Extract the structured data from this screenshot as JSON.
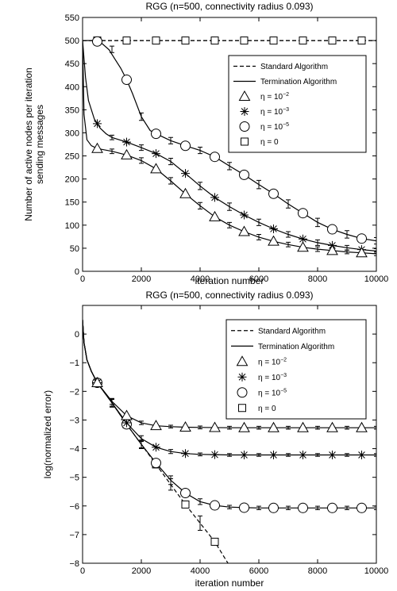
{
  "chart_data": [
    {
      "type": "line",
      "title": "RGG (n=500, connectivity radius 0.093)",
      "xlabel": "iteration number",
      "ylabel_lines": [
        "Number of active nodes per iteration",
        "sending messages"
      ],
      "xlim": [
        0,
        10000
      ],
      "ylim": [
        0,
        550
      ],
      "xticks": [
        0,
        2000,
        4000,
        6000,
        8000,
        10000
      ],
      "yticks": [
        0,
        50,
        100,
        150,
        200,
        250,
        300,
        350,
        400,
        450,
        500,
        550
      ],
      "grid": false,
      "legend_position": "top-right",
      "legend": [
        {
          "label": "Standard Algorithm",
          "style": "dashed",
          "marker": "none"
        },
        {
          "label": "Termination Algorithm",
          "style": "solid",
          "marker": "none"
        },
        {
          "label": "η = 10",
          "sup": "−2",
          "style": "none",
          "marker": "triangle"
        },
        {
          "label": "η = 10",
          "sup": "−3",
          "style": "none",
          "marker": "asterisk"
        },
        {
          "label": "η = 10",
          "sup": "−5",
          "style": "none",
          "marker": "circle"
        },
        {
          "label": "η = 0",
          "sup": "",
          "style": "none",
          "marker": "square"
        }
      ],
      "series": [
        {
          "legend_index": 0,
          "style": "dashed",
          "marker": "none",
          "x": [
            0,
            10000
          ],
          "y": [
            500,
            500
          ],
          "marker_x": [],
          "errorbars": []
        },
        {
          "legend_index": 5,
          "style": "dashed",
          "marker": "square",
          "x": [
            0,
            10000
          ],
          "y": [
            500,
            500
          ],
          "marker_x": [
            500,
            1500,
            2500,
            3500,
            4500,
            5500,
            6500,
            7500,
            8500,
            9500
          ],
          "errorbars": []
        },
        {
          "legend_index": 4,
          "style": "solid",
          "marker": "circle",
          "x": [
            0,
            300,
            600,
            900,
            1100,
            1300,
            1500,
            1700,
            2000,
            2300,
            2500,
            3000,
            3500,
            4000,
            4500,
            5000,
            5500,
            6000,
            6500,
            7000,
            7500,
            8000,
            8500,
            9000,
            9500,
            10000
          ],
          "y": [
            500,
            500,
            497,
            480,
            460,
            440,
            415,
            385,
            335,
            305,
            298,
            283,
            272,
            262,
            248,
            228,
            209,
            188,
            168,
            146,
            126,
            106,
            91,
            80,
            71,
            66
          ],
          "marker_x": [
            500,
            1500,
            2500,
            3500,
            4500,
            5500,
            6500,
            7500,
            8500,
            9500
          ],
          "errorbars": [
            [
              1000,
              481,
              7
            ],
            [
              2000,
              335,
              8
            ],
            [
              3000,
              283,
              7
            ],
            [
              4000,
              262,
              7
            ],
            [
              5000,
              228,
              8
            ],
            [
              6000,
              188,
              9
            ],
            [
              7000,
              146,
              9
            ],
            [
              8000,
              106,
              9
            ],
            [
              9000,
              80,
              8
            ],
            [
              10000,
              66,
              7
            ]
          ]
        },
        {
          "legend_index": 3,
          "style": "solid",
          "marker": "asterisk",
          "x": [
            0,
            100,
            200,
            400,
            600,
            800,
            1000,
            1500,
            2000,
            2500,
            3000,
            3500,
            4000,
            4500,
            5000,
            5500,
            6000,
            6500,
            7000,
            7500,
            8000,
            8500,
            9000,
            9500,
            10000
          ],
          "y": [
            500,
            420,
            370,
            330,
            310,
            298,
            290,
            280,
            268,
            255,
            238,
            212,
            185,
            160,
            140,
            122,
            106,
            92,
            80,
            70,
            62,
            56,
            51,
            47,
            44
          ],
          "marker_x": [
            500,
            1500,
            2500,
            3500,
            4500,
            5500,
            6500,
            7500,
            8500,
            9500
          ],
          "errorbars": [
            [
              1000,
              290,
              5
            ],
            [
              2000,
              268,
              6
            ],
            [
              3000,
              238,
              7
            ],
            [
              4000,
              185,
              8
            ],
            [
              5000,
              140,
              8
            ],
            [
              6000,
              106,
              7
            ],
            [
              7000,
              80,
              6
            ],
            [
              8000,
              62,
              6
            ],
            [
              9000,
              51,
              5
            ],
            [
              10000,
              44,
              5
            ]
          ]
        },
        {
          "legend_index": 2,
          "style": "solid",
          "marker": "triangle",
          "x": [
            0,
            50,
            150,
            300,
            500,
            1000,
            1500,
            2000,
            2500,
            3000,
            3500,
            4000,
            4500,
            5000,
            5500,
            6000,
            6500,
            7000,
            7500,
            8000,
            8500,
            9000,
            9500,
            10000
          ],
          "y": [
            500,
            340,
            285,
            272,
            266,
            260,
            252,
            240,
            222,
            196,
            168,
            142,
            118,
            100,
            86,
            74,
            65,
            58,
            52,
            48,
            45,
            42,
            40,
            38
          ],
          "marker_x": [
            500,
            1500,
            2500,
            3500,
            4500,
            5500,
            6500,
            7500,
            8500,
            9500
          ],
          "errorbars": [
            [
              1000,
              260,
              5
            ],
            [
              2000,
              240,
              6
            ],
            [
              3000,
              196,
              7
            ],
            [
              4000,
              142,
              7
            ],
            [
              5000,
              100,
              6
            ],
            [
              6000,
              74,
              6
            ],
            [
              7000,
              58,
              5
            ],
            [
              8000,
              48,
              5
            ],
            [
              9000,
              42,
              4
            ],
            [
              10000,
              38,
              4
            ]
          ]
        }
      ]
    },
    {
      "type": "line",
      "title": "RGG (n=500, connectivity radius 0.093)",
      "xlabel": "iteration number",
      "ylabel_lines": [
        "log(normalized error)"
      ],
      "xlim": [
        0,
        10000
      ],
      "ylim": [
        -8,
        1
      ],
      "xticks": [
        0,
        2000,
        4000,
        6000,
        8000,
        10000
      ],
      "yticks": [
        0,
        -1,
        -2,
        -3,
        -4,
        -5,
        -6,
        -7,
        -8
      ],
      "ytick_labels": [
        "0",
        "−1",
        "−2",
        "−3",
        "−4",
        "−5",
        "−6",
        "−7",
        "−8"
      ],
      "grid": false,
      "legend_position": "top-right",
      "legend": [
        {
          "label": "Standard Algorithm",
          "style": "dashed",
          "marker": "none"
        },
        {
          "label": "Termination Algorithm",
          "style": "solid",
          "marker": "none"
        },
        {
          "label": "η = 10",
          "sup": "−2",
          "style": "none",
          "marker": "triangle"
        },
        {
          "label": "η = 10",
          "sup": "−3",
          "style": "none",
          "marker": "asterisk"
        },
        {
          "label": "η = 10",
          "sup": "−5",
          "style": "none",
          "marker": "circle"
        },
        {
          "label": "η = 0",
          "sup": "",
          "style": "none",
          "marker": "square"
        }
      ],
      "series": [
        {
          "legend_index": 5,
          "style": "dashed",
          "marker": "square",
          "x": [
            0,
            50,
            150,
            300,
            500,
            1000,
            1500,
            2000,
            2500,
            3000,
            3500,
            4000,
            4500,
            4950
          ],
          "y": [
            0.5,
            -0.3,
            -0.9,
            -1.3,
            -1.7,
            -2.4,
            -3.15,
            -3.85,
            -4.55,
            -5.25,
            -5.95,
            -6.6,
            -7.25,
            -8.0
          ],
          "marker_x": [
            500,
            1500,
            2500,
            3500,
            4500
          ],
          "errorbars": [
            [
              1000,
              -2.4,
              0.15
            ],
            [
              2000,
              -3.85,
              0.15
            ],
            [
              3000,
              -5.25,
              0.2
            ],
            [
              4000,
              -6.6,
              0.25
            ]
          ]
        },
        {
          "legend_index": 4,
          "style": "solid",
          "marker": "circle",
          "x": [
            0,
            50,
            150,
            300,
            500,
            1000,
            1500,
            2000,
            2500,
            3000,
            3500,
            4000,
            4500,
            5000,
            5500,
            6000,
            7000,
            8000,
            9000,
            10000
          ],
          "y": [
            0.5,
            -0.3,
            -0.9,
            -1.3,
            -1.7,
            -2.4,
            -3.15,
            -3.85,
            -4.5,
            -5.1,
            -5.55,
            -5.85,
            -5.98,
            -6.04,
            -6.06,
            -6.07,
            -6.07,
            -6.07,
            -6.07,
            -6.07
          ],
          "marker_x": [
            500,
            1500,
            2500,
            3500,
            4500,
            5500,
            6500,
            7500,
            8500,
            9500
          ],
          "errorbars": [
            [
              1000,
              -2.4,
              0.12
            ],
            [
              2000,
              -3.85,
              0.12
            ],
            [
              3000,
              -5.1,
              0.15
            ],
            [
              4000,
              -5.85,
              0.1
            ],
            [
              5000,
              -6.04,
              0.06
            ],
            [
              6000,
              -6.07,
              0.06
            ],
            [
              7000,
              -6.07,
              0.06
            ],
            [
              8000,
              -6.07,
              0.06
            ],
            [
              9000,
              -6.07,
              0.06
            ],
            [
              10000,
              -6.07,
              0.06
            ]
          ]
        },
        {
          "legend_index": 3,
          "style": "solid",
          "marker": "asterisk",
          "x": [
            0,
            50,
            150,
            300,
            500,
            1000,
            1500,
            2000,
            2500,
            3000,
            3500,
            4000,
            4500,
            5000,
            6000,
            7000,
            8000,
            9000,
            10000
          ],
          "y": [
            0.5,
            -0.3,
            -0.9,
            -1.3,
            -1.7,
            -2.4,
            -3.1,
            -3.65,
            -3.95,
            -4.1,
            -4.17,
            -4.2,
            -4.21,
            -4.22,
            -4.22,
            -4.22,
            -4.22,
            -4.22,
            -4.22
          ],
          "marker_x": [
            500,
            1500,
            2500,
            3500,
            4500,
            5500,
            6500,
            7500,
            8500,
            9500
          ],
          "errorbars": [
            [
              1000,
              -2.4,
              0.12
            ],
            [
              2000,
              -3.65,
              0.1
            ],
            [
              3000,
              -4.1,
              0.07
            ],
            [
              4000,
              -4.2,
              0.05
            ],
            [
              5000,
              -4.22,
              0.05
            ],
            [
              6000,
              -4.22,
              0.05
            ],
            [
              7000,
              -4.22,
              0.05
            ],
            [
              8000,
              -4.22,
              0.05
            ],
            [
              9000,
              -4.22,
              0.05
            ],
            [
              10000,
              -4.22,
              0.05
            ]
          ]
        },
        {
          "legend_index": 2,
          "style": "solid",
          "marker": "triangle",
          "x": [
            0,
            50,
            150,
            300,
            500,
            1000,
            1500,
            2000,
            2500,
            3000,
            3500,
            4000,
            5000,
            6000,
            7000,
            8000,
            9000,
            10000
          ],
          "y": [
            0.5,
            -0.3,
            -0.9,
            -1.3,
            -1.7,
            -2.35,
            -2.85,
            -3.1,
            -3.2,
            -3.23,
            -3.25,
            -3.26,
            -3.27,
            -3.27,
            -3.27,
            -3.27,
            -3.27,
            -3.27
          ],
          "marker_x": [
            500,
            1500,
            2500,
            3500,
            4500,
            5500,
            6500,
            7500,
            8500,
            9500
          ],
          "errorbars": [
            [
              1000,
              -2.35,
              0.1
            ],
            [
              2000,
              -3.1,
              0.06
            ],
            [
              3000,
              -3.23,
              0.05
            ],
            [
              4000,
              -3.26,
              0.05
            ],
            [
              5000,
              -3.27,
              0.05
            ],
            [
              6000,
              -3.27,
              0.05
            ],
            [
              7000,
              -3.27,
              0.05
            ],
            [
              8000,
              -3.27,
              0.05
            ],
            [
              9000,
              -3.27,
              0.05
            ],
            [
              10000,
              -3.27,
              0.05
            ]
          ]
        }
      ]
    }
  ]
}
